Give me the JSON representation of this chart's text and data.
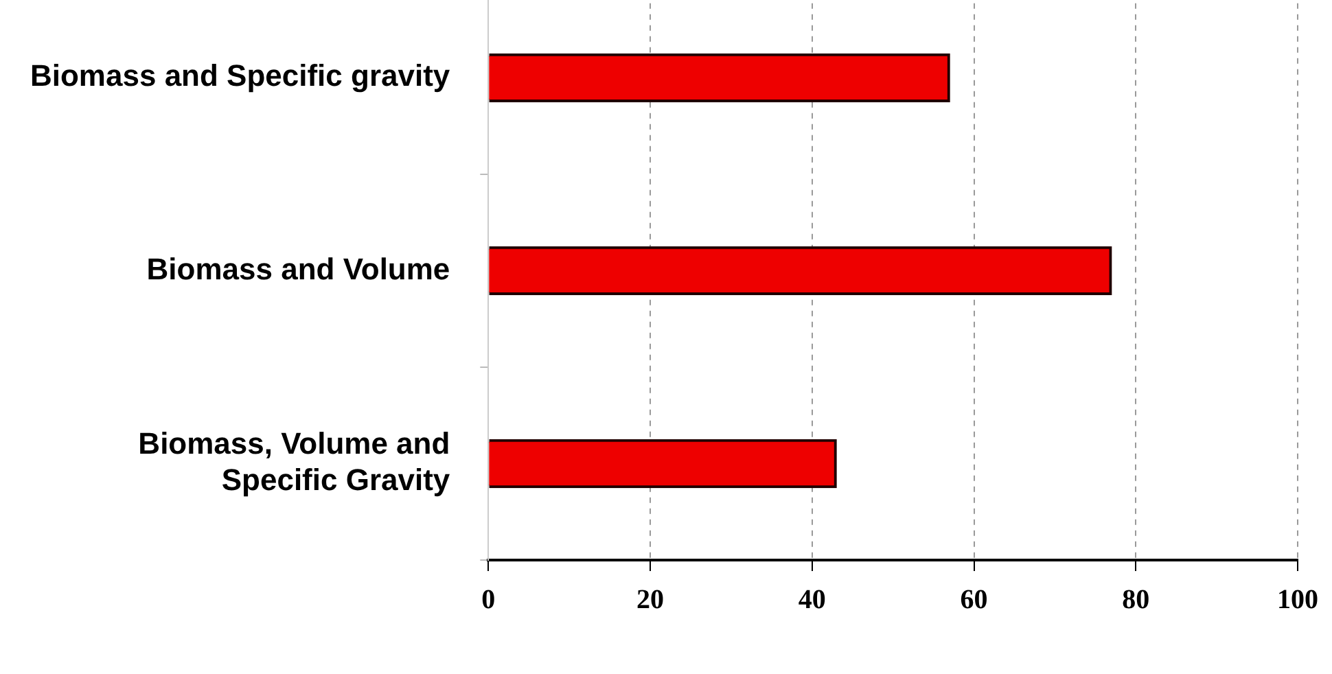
{
  "chart_data": {
    "type": "bar",
    "orientation": "horizontal",
    "categories": [
      "Biomass and Specific gravity",
      "Biomass and Volume",
      "Biomass, Volume and Specific Gravity"
    ],
    "values": [
      57,
      77,
      43
    ],
    "color": "#ee0000",
    "xlim": [
      0,
      100
    ],
    "xticks": [
      0,
      20,
      40,
      60,
      80,
      100
    ],
    "grid": "x"
  }
}
